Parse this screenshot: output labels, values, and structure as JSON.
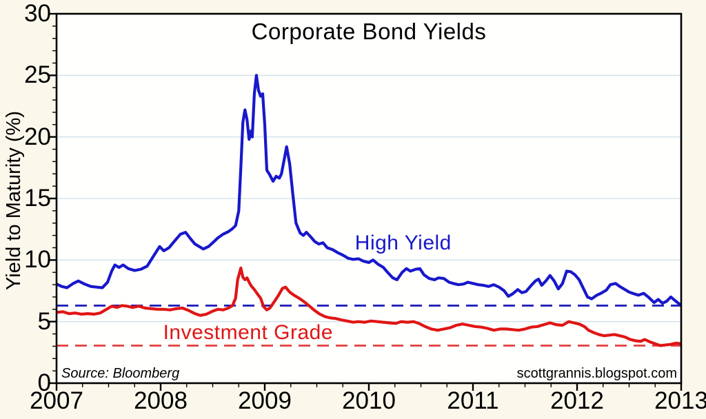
{
  "title": "Corporate Bond Yields",
  "source_note": "Source:  Bloomberg",
  "watermark": "scottgrannis.blogspot.com",
  "colors": {
    "outer_bg": "#fbf8eb",
    "plot_bg": "#fffffd",
    "grid": "#cfe0ec",
    "frame": "#000000",
    "tick": "#000000",
    "text": "#000000",
    "high_yield_line": "#1818cc",
    "investment_grade_line": "#e01515",
    "high_yield_dashed": "#2020b8",
    "investment_grade_dashed": "#e23c3c"
  },
  "chart_data": {
    "type": "line",
    "title": "Corporate Bond Yields",
    "xlabel": "",
    "ylabel": "Yield to Maturity (%)",
    "xlim": [
      2007,
      2013
    ],
    "ylim": [
      0,
      30
    ],
    "xticks": [
      2007,
      2008,
      2009,
      2010,
      2011,
      2012,
      2013
    ],
    "yticks": [
      0,
      5,
      10,
      15,
      20,
      25,
      30
    ],
    "x_minor_step": 0.25,
    "y_minor_step": 1,
    "grid": "horizontal-major-only",
    "grid_values": [
      5,
      10,
      15,
      20,
      25
    ],
    "legend_position": "inline-labels",
    "reference_lines": [
      {
        "series": "High Yield",
        "value": 6.3,
        "style": "dashed",
        "color": "#2020b8"
      },
      {
        "series": "Investment Grade",
        "value": 3.05,
        "style": "dashed",
        "color": "#e23c3c"
      }
    ],
    "series": [
      {
        "name": "High Yield",
        "color": "#1818cc",
        "label_pos": [
          2010.33,
          11.35
        ],
        "points": [
          [
            2007.0,
            8.05
          ],
          [
            2007.05,
            7.85
          ],
          [
            2007.1,
            7.75
          ],
          [
            2007.16,
            8.1
          ],
          [
            2007.21,
            8.3
          ],
          [
            2007.27,
            8.05
          ],
          [
            2007.33,
            7.85
          ],
          [
            2007.38,
            7.8
          ],
          [
            2007.44,
            7.75
          ],
          [
            2007.49,
            8.2
          ],
          [
            2007.53,
            9.1
          ],
          [
            2007.56,
            9.6
          ],
          [
            2007.6,
            9.4
          ],
          [
            2007.64,
            9.6
          ],
          [
            2007.69,
            9.3
          ],
          [
            2007.75,
            9.15
          ],
          [
            2007.81,
            9.25
          ],
          [
            2007.87,
            9.5
          ],
          [
            2007.93,
            10.3
          ],
          [
            2007.99,
            11.1
          ],
          [
            2008.03,
            10.75
          ],
          [
            2008.08,
            11.0
          ],
          [
            2008.13,
            11.5
          ],
          [
            2008.19,
            12.1
          ],
          [
            2008.24,
            12.25
          ],
          [
            2008.29,
            11.7
          ],
          [
            2008.33,
            11.3
          ],
          [
            2008.41,
            10.9
          ],
          [
            2008.46,
            11.1
          ],
          [
            2008.5,
            11.4
          ],
          [
            2008.55,
            11.8
          ],
          [
            2008.6,
            12.1
          ],
          [
            2008.65,
            12.3
          ],
          [
            2008.69,
            12.55
          ],
          [
            2008.72,
            12.8
          ],
          [
            2008.75,
            14.0
          ],
          [
            2008.77,
            17.5
          ],
          [
            2008.79,
            21.2
          ],
          [
            2008.81,
            22.2
          ],
          [
            2008.83,
            21.4
          ],
          [
            2008.85,
            19.8
          ],
          [
            2008.87,
            20.5
          ],
          [
            2008.88,
            20.0
          ],
          [
            2008.9,
            23.5
          ],
          [
            2008.92,
            25.0
          ],
          [
            2008.94,
            23.8
          ],
          [
            2008.96,
            23.3
          ],
          [
            2008.98,
            23.5
          ],
          [
            2009.0,
            21.0
          ],
          [
            2009.02,
            17.3
          ],
          [
            2009.05,
            16.9
          ],
          [
            2009.08,
            16.4
          ],
          [
            2009.11,
            16.8
          ],
          [
            2009.14,
            16.65
          ],
          [
            2009.16,
            17.0
          ],
          [
            2009.19,
            18.3
          ],
          [
            2009.21,
            19.2
          ],
          [
            2009.24,
            17.8
          ],
          [
            2009.27,
            15.3
          ],
          [
            2009.3,
            13.0
          ],
          [
            2009.34,
            12.2
          ],
          [
            2009.37,
            12.0
          ],
          [
            2009.4,
            12.25
          ],
          [
            2009.44,
            11.9
          ],
          [
            2009.48,
            11.5
          ],
          [
            2009.52,
            11.3
          ],
          [
            2009.56,
            11.4
          ],
          [
            2009.6,
            11.0
          ],
          [
            2009.65,
            10.85
          ],
          [
            2009.7,
            10.6
          ],
          [
            2009.75,
            10.4
          ],
          [
            2009.8,
            10.15
          ],
          [
            2009.85,
            10.05
          ],
          [
            2009.9,
            10.1
          ],
          [
            2009.95,
            9.9
          ],
          [
            2010.0,
            9.8
          ],
          [
            2010.04,
            10.0
          ],
          [
            2010.09,
            9.65
          ],
          [
            2010.14,
            9.4
          ],
          [
            2010.18,
            9.0
          ],
          [
            2010.23,
            8.55
          ],
          [
            2010.27,
            8.4
          ],
          [
            2010.32,
            9.0
          ],
          [
            2010.36,
            9.3
          ],
          [
            2010.4,
            9.1
          ],
          [
            2010.45,
            9.25
          ],
          [
            2010.49,
            9.3
          ],
          [
            2010.53,
            8.8
          ],
          [
            2010.58,
            8.5
          ],
          [
            2010.63,
            8.4
          ],
          [
            2010.67,
            8.55
          ],
          [
            2010.72,
            8.5
          ],
          [
            2010.77,
            8.2
          ],
          [
            2010.81,
            8.1
          ],
          [
            2010.86,
            8.0
          ],
          [
            2010.91,
            8.05
          ],
          [
            2010.95,
            8.2
          ],
          [
            2011.0,
            8.1
          ],
          [
            2011.05,
            8.0
          ],
          [
            2011.1,
            7.95
          ],
          [
            2011.15,
            7.85
          ],
          [
            2011.2,
            8.0
          ],
          [
            2011.25,
            7.8
          ],
          [
            2011.3,
            7.5
          ],
          [
            2011.34,
            7.05
          ],
          [
            2011.38,
            7.25
          ],
          [
            2011.43,
            7.6
          ],
          [
            2011.47,
            7.35
          ],
          [
            2011.51,
            7.45
          ],
          [
            2011.56,
            7.95
          ],
          [
            2011.6,
            8.3
          ],
          [
            2011.63,
            8.45
          ],
          [
            2011.66,
            7.95
          ],
          [
            2011.7,
            8.3
          ],
          [
            2011.74,
            8.75
          ],
          [
            2011.78,
            8.3
          ],
          [
            2011.82,
            7.65
          ],
          [
            2011.86,
            8.1
          ],
          [
            2011.9,
            9.1
          ],
          [
            2011.94,
            9.05
          ],
          [
            2011.98,
            8.8
          ],
          [
            2012.02,
            8.4
          ],
          [
            2012.06,
            7.7
          ],
          [
            2012.1,
            7.0
          ],
          [
            2012.14,
            6.85
          ],
          [
            2012.19,
            7.15
          ],
          [
            2012.23,
            7.3
          ],
          [
            2012.28,
            7.55
          ],
          [
            2012.32,
            8.0
          ],
          [
            2012.37,
            8.1
          ],
          [
            2012.41,
            7.85
          ],
          [
            2012.46,
            7.6
          ],
          [
            2012.5,
            7.4
          ],
          [
            2012.55,
            7.25
          ],
          [
            2012.59,
            7.15
          ],
          [
            2012.64,
            7.3
          ],
          [
            2012.69,
            6.95
          ],
          [
            2012.74,
            6.55
          ],
          [
            2012.78,
            6.8
          ],
          [
            2012.82,
            6.5
          ],
          [
            2012.86,
            6.65
          ],
          [
            2012.9,
            7.0
          ],
          [
            2012.95,
            6.65
          ],
          [
            2013.0,
            6.3
          ]
        ]
      },
      {
        "name": "Investment Grade",
        "color": "#e01515",
        "label_pos": [
          2008.84,
          4.1
        ],
        "points": [
          [
            2007.0,
            5.75
          ],
          [
            2007.06,
            5.8
          ],
          [
            2007.12,
            5.65
          ],
          [
            2007.18,
            5.7
          ],
          [
            2007.24,
            5.6
          ],
          [
            2007.3,
            5.65
          ],
          [
            2007.36,
            5.6
          ],
          [
            2007.42,
            5.7
          ],
          [
            2007.48,
            6.0
          ],
          [
            2007.53,
            6.25
          ],
          [
            2007.58,
            6.15
          ],
          [
            2007.63,
            6.3
          ],
          [
            2007.68,
            6.25
          ],
          [
            2007.73,
            6.15
          ],
          [
            2007.79,
            6.25
          ],
          [
            2007.85,
            6.1
          ],
          [
            2007.91,
            6.05
          ],
          [
            2007.97,
            6.0
          ],
          [
            2008.03,
            6.0
          ],
          [
            2008.09,
            5.95
          ],
          [
            2008.15,
            6.05
          ],
          [
            2008.21,
            6.1
          ],
          [
            2008.27,
            5.9
          ],
          [
            2008.33,
            5.65
          ],
          [
            2008.38,
            5.5
          ],
          [
            2008.44,
            5.6
          ],
          [
            2008.5,
            5.85
          ],
          [
            2008.55,
            6.0
          ],
          [
            2008.6,
            5.95
          ],
          [
            2008.65,
            6.1
          ],
          [
            2008.69,
            6.3
          ],
          [
            2008.72,
            6.9
          ],
          [
            2008.74,
            8.4
          ],
          [
            2008.77,
            9.35
          ],
          [
            2008.79,
            8.6
          ],
          [
            2008.81,
            8.4
          ],
          [
            2008.83,
            8.55
          ],
          [
            2008.85,
            8.2
          ],
          [
            2008.87,
            7.9
          ],
          [
            2008.9,
            7.6
          ],
          [
            2008.93,
            7.25
          ],
          [
            2008.96,
            6.9
          ],
          [
            2008.99,
            6.2
          ],
          [
            2009.02,
            5.95
          ],
          [
            2009.05,
            6.1
          ],
          [
            2009.09,
            6.6
          ],
          [
            2009.13,
            7.1
          ],
          [
            2009.17,
            7.7
          ],
          [
            2009.2,
            7.8
          ],
          [
            2009.24,
            7.4
          ],
          [
            2009.28,
            7.15
          ],
          [
            2009.33,
            6.9
          ],
          [
            2009.38,
            6.6
          ],
          [
            2009.43,
            6.25
          ],
          [
            2009.48,
            5.9
          ],
          [
            2009.53,
            5.6
          ],
          [
            2009.58,
            5.4
          ],
          [
            2009.63,
            5.3
          ],
          [
            2009.68,
            5.25
          ],
          [
            2009.73,
            5.15
          ],
          [
            2009.79,
            5.05
          ],
          [
            2009.85,
            4.95
          ],
          [
            2009.9,
            5.0
          ],
          [
            2009.96,
            4.95
          ],
          [
            2010.02,
            5.05
          ],
          [
            2010.08,
            5.0
          ],
          [
            2010.14,
            4.95
          ],
          [
            2010.2,
            4.9
          ],
          [
            2010.26,
            4.85
          ],
          [
            2010.31,
            5.0
          ],
          [
            2010.37,
            4.95
          ],
          [
            2010.43,
            5.0
          ],
          [
            2010.48,
            4.85
          ],
          [
            2010.54,
            4.6
          ],
          [
            2010.6,
            4.4
          ],
          [
            2010.66,
            4.3
          ],
          [
            2010.72,
            4.4
          ],
          [
            2010.78,
            4.5
          ],
          [
            2010.84,
            4.7
          ],
          [
            2010.9,
            4.8
          ],
          [
            2010.96,
            4.7
          ],
          [
            2011.02,
            4.6
          ],
          [
            2011.08,
            4.55
          ],
          [
            2011.14,
            4.45
          ],
          [
            2011.2,
            4.3
          ],
          [
            2011.26,
            4.4
          ],
          [
            2011.32,
            4.4
          ],
          [
            2011.38,
            4.35
          ],
          [
            2011.44,
            4.3
          ],
          [
            2011.5,
            4.4
          ],
          [
            2011.56,
            4.55
          ],
          [
            2011.62,
            4.6
          ],
          [
            2011.68,
            4.75
          ],
          [
            2011.74,
            4.9
          ],
          [
            2011.8,
            4.75
          ],
          [
            2011.86,
            4.7
          ],
          [
            2011.92,
            5.0
          ],
          [
            2011.97,
            4.9
          ],
          [
            2012.02,
            4.8
          ],
          [
            2012.07,
            4.6
          ],
          [
            2012.11,
            4.3
          ],
          [
            2012.16,
            4.1
          ],
          [
            2012.21,
            3.95
          ],
          [
            2012.26,
            3.85
          ],
          [
            2012.31,
            3.9
          ],
          [
            2012.36,
            3.95
          ],
          [
            2012.41,
            3.85
          ],
          [
            2012.46,
            3.75
          ],
          [
            2012.51,
            3.55
          ],
          [
            2012.56,
            3.45
          ],
          [
            2012.61,
            3.4
          ],
          [
            2012.65,
            3.55
          ],
          [
            2012.7,
            3.35
          ],
          [
            2012.75,
            3.2
          ],
          [
            2012.8,
            3.05
          ],
          [
            2012.85,
            3.1
          ],
          [
            2012.9,
            3.15
          ],
          [
            2012.95,
            3.25
          ],
          [
            2013.0,
            3.2
          ]
        ]
      }
    ]
  }
}
